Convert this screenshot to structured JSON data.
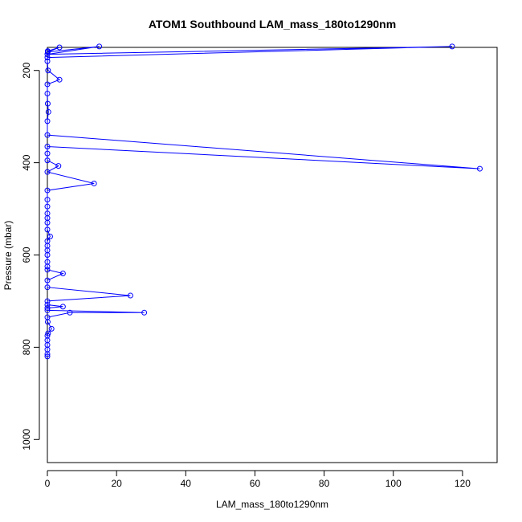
{
  "chart_data": {
    "type": "line",
    "title": "ATOM1 Southbound LAM_mass_180to1290nm",
    "xlabel": "LAM_mass_180to1290nm",
    "ylabel": "Pressure (mbar)",
    "xlim": [
      0,
      130
    ],
    "ylim": [
      1050,
      150
    ],
    "y_reversed": true,
    "x_ticks": [
      0,
      20,
      40,
      60,
      80,
      100,
      120
    ],
    "y_ticks": [
      200,
      400,
      600,
      800,
      1000
    ],
    "x_tick_labels": [
      "0",
      "20",
      "40",
      "60",
      "80",
      "100",
      "120"
    ],
    "y_tick_labels": [
      "200",
      "400",
      "600",
      "800",
      "1000"
    ],
    "grid": false,
    "legend": "none",
    "color": "#0000ff",
    "series": [
      {
        "x": [
          0.1,
          3.5,
          0.1,
          15,
          0,
          117,
          0,
          0,
          0.2,
          3.5,
          0,
          0,
          0.1,
          0.3,
          0,
          0,
          125,
          0,
          0,
          0,
          3.2,
          0,
          13.5,
          0,
          0,
          0,
          0,
          0,
          0,
          0,
          0.8,
          0,
          0,
          0,
          0,
          0,
          0,
          0,
          4.5,
          0,
          0,
          24,
          0,
          0,
          4.5,
          0,
          0,
          28,
          6.5,
          0,
          0.1,
          1.2,
          0.2,
          0,
          0,
          0,
          0,
          0,
          0
        ],
        "y": [
          158,
          150,
          160,
          148,
          165,
          148,
          172,
          180,
          200,
          220,
          230,
          250,
          272,
          290,
          310,
          340,
          413,
          365,
          380,
          395,
          407,
          420,
          445,
          460,
          480,
          495,
          510,
          520,
          530,
          545,
          560,
          570,
          580,
          590,
          600,
          615,
          625,
          632,
          640,
          655,
          670,
          688,
          700,
          708,
          712,
          715,
          720,
          725,
          725,
          735,
          745,
          760,
          770,
          775,
          785,
          795,
          805,
          815,
          820
        ]
      }
    ]
  }
}
